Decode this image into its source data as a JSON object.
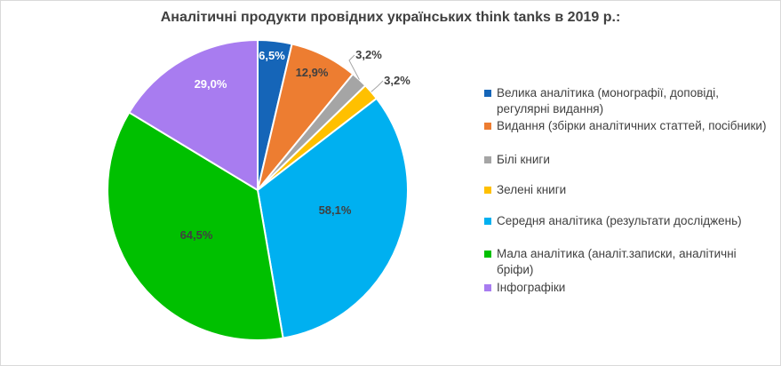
{
  "chart_data": {
    "type": "pie",
    "title": "Аналітичні продукти провідних українських think tanks в 2019 р.:",
    "slices": [
      {
        "name": "Велика аналітика (монографії, доповіді, регулярні видання)",
        "value": 6.5,
        "label": "6,5%",
        "color": "#1565b8"
      },
      {
        "name": "Видання (збірки аналітичних статтей, посібники)",
        "value": 12.9,
        "label": "12,9%",
        "color": "#ed7d31"
      },
      {
        "name": "Білі книги",
        "value": 3.2,
        "label": "3,2%",
        "color": "#a5a5a5"
      },
      {
        "name": "Зелені книги",
        "value": 3.2,
        "label": "3,2%",
        "color": "#ffc000"
      },
      {
        "name": "Середня аналітика (результати досліджень)",
        "value": 58.1,
        "label": "58,1%",
        "color": "#00b0f0"
      },
      {
        "name": "Мала аналітика (аналіт.записки, аналітичні бріфи)",
        "value": 64.5,
        "label": "64,5%",
        "color": "#00c000"
      },
      {
        "name": "Інфографіки",
        "value": 29.0,
        "label": "29,0%",
        "color": "#a87cf0"
      }
    ],
    "legend_position": "right"
  }
}
